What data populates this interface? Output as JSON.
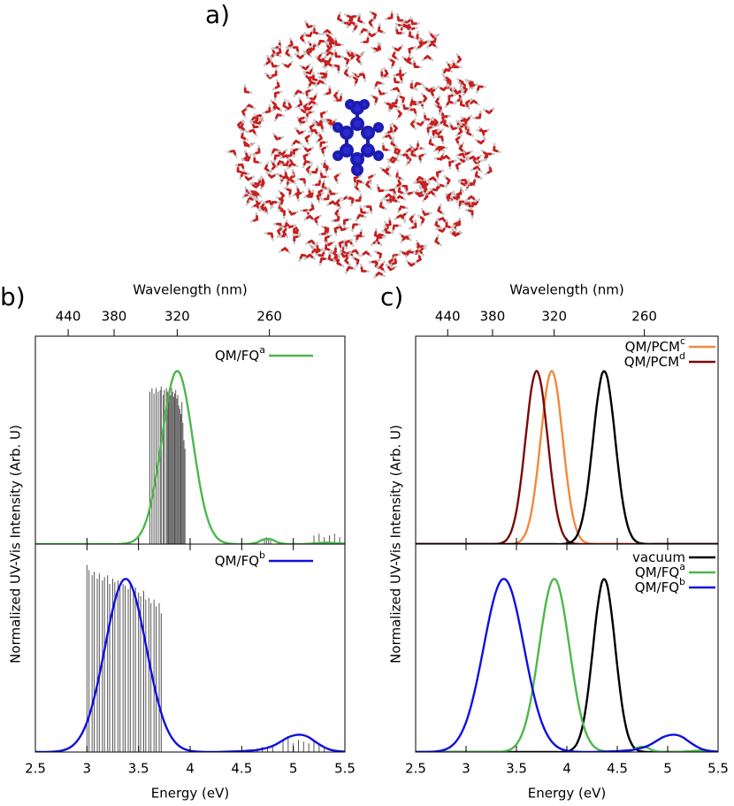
{
  "image": {
    "label": "a)"
  },
  "chart_data": [
    {
      "type": "line",
      "panel_label": "b)",
      "x2label": "Wavelength (nm)",
      "x2ticks": [
        440,
        380,
        320,
        260
      ],
      "ylabel": "Normalized UV-Vis Intensity (Arb. U)",
      "xlim": [
        2.5,
        5.5
      ],
      "ylim": [
        0,
        1.2
      ],
      "x": [
        2.5,
        2.55,
        2.6,
        2.65,
        2.7,
        2.75,
        2.8,
        2.85,
        2.9,
        2.95,
        3.0,
        3.05,
        3.1,
        3.15,
        3.2,
        3.25,
        3.3,
        3.35,
        3.4,
        3.45,
        3.5,
        3.55,
        3.6,
        3.65,
        3.7,
        3.75,
        3.8,
        3.85,
        3.9,
        3.95,
        4.0,
        4.05,
        4.1,
        4.15,
        4.2,
        4.25,
        4.3,
        4.35,
        4.4,
        4.45,
        4.5,
        4.55,
        4.6,
        4.65,
        4.7,
        4.75,
        4.8,
        4.85,
        4.9,
        4.95,
        5.0,
        5.05,
        5.1,
        5.15,
        5.2,
        5.25,
        5.3,
        5.35,
        5.4,
        5.45,
        5.5
      ],
      "series": [
        {
          "name": "QM/FQ",
          "name_sup": "a",
          "color": "#4cb84c",
          "values": [
            0,
            0,
            0,
            0,
            0,
            0,
            0,
            0,
            0,
            0,
            0,
            0,
            0,
            0,
            0,
            0,
            0,
            0.002,
            0.007,
            0.018,
            0.044,
            0.096,
            0.186,
            0.325,
            0.506,
            0.707,
            0.882,
            0.986,
            0.986,
            0.882,
            0.707,
            0.506,
            0.325,
            0.186,
            0.096,
            0.044,
            0.018,
            0.007,
            0.002,
            0,
            0,
            0,
            0.003,
            0.01,
            0.025,
            0.03,
            0.025,
            0.01,
            0.003,
            0,
            0,
            0,
            0,
            0.002,
            0.004,
            0.006,
            0.008,
            0.008,
            0.006,
            0.004,
            0.002
          ]
        }
      ],
      "sticks": {
        "color": "#555555",
        "x": [
          3.61,
          3.63,
          3.65,
          3.67,
          3.69,
          3.71,
          3.72,
          3.74,
          3.75,
          3.77,
          3.78,
          3.79,
          3.8,
          3.81,
          3.82,
          3.83,
          3.84,
          3.85,
          3.86,
          3.87,
          3.88,
          3.89,
          3.9,
          3.91,
          3.92,
          3.93,
          3.94,
          3.95,
          4.72,
          4.74,
          4.76,
          4.78,
          5.2,
          5.25,
          5.3,
          5.35,
          5.4,
          5.45
        ],
        "values": [
          0.88,
          0.9,
          0.87,
          0.9,
          0.88,
          0.89,
          0.91,
          0.86,
          0.89,
          0.9,
          0.88,
          0.87,
          0.89,
          0.86,
          0.9,
          0.88,
          0.85,
          0.87,
          0.89,
          0.84,
          0.86,
          0.8,
          0.78,
          0.75,
          0.82,
          0.7,
          0.6,
          0.55,
          0.03,
          0.04,
          0.03,
          0.02,
          0.05,
          0.06,
          0.04,
          0.05,
          0.06,
          0.04
        ]
      }
    },
    {
      "type": "line",
      "xlabel": "Energy (eV)",
      "xticks": [
        2.5,
        3,
        3.5,
        4,
        4.5,
        5,
        5.5
      ],
      "xlim": [
        2.5,
        5.5
      ],
      "ylim": [
        0,
        1.2
      ],
      "x": [
        2.5,
        2.55,
        2.6,
        2.65,
        2.7,
        2.75,
        2.8,
        2.85,
        2.9,
        2.95,
        3.0,
        3.05,
        3.1,
        3.15,
        3.2,
        3.25,
        3.3,
        3.35,
        3.4,
        3.45,
        3.5,
        3.55,
        3.6,
        3.65,
        3.7,
        3.75,
        3.8,
        3.85,
        3.9,
        3.95,
        4.0,
        4.05,
        4.1,
        4.15,
        4.2,
        4.25,
        4.3,
        4.35,
        4.4,
        4.45,
        4.5,
        4.55,
        4.6,
        4.65,
        4.7,
        4.75,
        4.8,
        4.85,
        4.9,
        4.95,
        5.0,
        5.05,
        5.1,
        5.15,
        5.2,
        5.25,
        5.3,
        5.35,
        5.4,
        5.45,
        5.5
      ],
      "series": [
        {
          "name": "QM/FQ",
          "name_sup": "b",
          "color": "#1010e0",
          "values": [
            0.0001,
            0.0002,
            0.0005,
            0.0014,
            0.0034,
            0.0076,
            0.016,
            0.032,
            0.06,
            0.105,
            0.172,
            0.267,
            0.389,
            0.531,
            0.682,
            0.823,
            0.932,
            0.992,
            0.992,
            0.932,
            0.823,
            0.682,
            0.531,
            0.389,
            0.267,
            0.172,
            0.105,
            0.06,
            0.032,
            0.016,
            0.0076,
            0.0034,
            0.0014,
            0.0005,
            0.0002,
            0.0001,
            0.001,
            0.002,
            0.003,
            0.004,
            0.005,
            0.007,
            0.009,
            0.012,
            0.018,
            0.025,
            0.035,
            0.05,
            0.068,
            0.085,
            0.095,
            0.1,
            0.097,
            0.085,
            0.065,
            0.045,
            0.028,
            0.015,
            0.008,
            0.004,
            0.002
          ]
        }
      ],
      "sticks": {
        "color": "#555555",
        "x": [
          3.0,
          3.02,
          3.05,
          3.07,
          3.1,
          3.12,
          3.15,
          3.17,
          3.2,
          3.22,
          3.25,
          3.27,
          3.3,
          3.32,
          3.35,
          3.37,
          3.4,
          3.42,
          3.45,
          3.47,
          3.5,
          3.52,
          3.55,
          3.57,
          3.6,
          3.62,
          3.65,
          3.67,
          3.7,
          3.72,
          4.65,
          4.7,
          4.75,
          4.8,
          4.9,
          4.95,
          5.0,
          5.05,
          5.1,
          5.15,
          5.2,
          5.25,
          5.3
        ],
        "values": [
          1.08,
          1.05,
          1.02,
          1.04,
          1.0,
          1.03,
          0.99,
          1.01,
          1.02,
          0.97,
          1.0,
          0.98,
          0.99,
          0.95,
          0.97,
          0.96,
          0.94,
          0.97,
          0.93,
          0.95,
          0.92,
          0.9,
          0.93,
          0.88,
          0.89,
          0.86,
          0.88,
          0.84,
          0.86,
          0.8,
          0.02,
          0.03,
          0.02,
          0.04,
          0.06,
          0.08,
          0.05,
          0.07,
          0.06,
          0.05,
          0.07,
          0.04,
          0.03
        ]
      }
    },
    {
      "type": "line",
      "panel_label": "c)",
      "x2label": "Wavelength (nm)",
      "x2ticks": [
        440,
        380,
        320,
        260
      ],
      "ylabel": "Normalized UV-Vis Intensity (Arb. U)",
      "xlim": [
        2.5,
        5.5
      ],
      "ylim": [
        0,
        1.2
      ],
      "x": [
        2.5,
        2.55,
        2.6,
        2.65,
        2.7,
        2.75,
        2.8,
        2.85,
        2.9,
        2.95,
        3.0,
        3.05,
        3.1,
        3.15,
        3.2,
        3.25,
        3.3,
        3.35,
        3.4,
        3.45,
        3.5,
        3.55,
        3.6,
        3.65,
        3.7,
        3.75,
        3.8,
        3.85,
        3.9,
        3.95,
        4.0,
        4.05,
        4.1,
        4.15,
        4.2,
        4.25,
        4.3,
        4.35,
        4.4,
        4.45,
        4.5,
        4.55,
        4.6,
        4.65,
        4.7,
        4.75,
        4.8,
        4.85,
        4.9,
        4.95,
        5.0,
        5.05,
        5.1,
        5.15,
        5.2,
        5.25,
        5.3,
        5.35,
        5.4,
        5.45,
        5.5
      ],
      "series": [
        {
          "name": "QM/PCM",
          "name_sup": "c",
          "color": "#f08a3c",
          "values": [
            0,
            0,
            0,
            0,
            0,
            0,
            0,
            0,
            0,
            0,
            0,
            0,
            0,
            0,
            0,
            0,
            0,
            0,
            0,
            0.0013,
            0.0063,
            0.024,
            0.076,
            0.191,
            0.395,
            0.661,
            0.902,
            1,
            0.902,
            0.661,
            0.395,
            0.191,
            0.076,
            0.024,
            0.0063,
            0.0013,
            0,
            0,
            0,
            0,
            0,
            0,
            0,
            0,
            0,
            0,
            0,
            0,
            0,
            0,
            0,
            0,
            0,
            0,
            0,
            0,
            0,
            0,
            0,
            0,
            0
          ]
        },
        {
          "name": "QM/PCM",
          "name_sup": "d",
          "color": "#7a0a0a",
          "values": [
            0,
            0,
            0,
            0,
            0,
            0,
            0,
            0,
            0,
            0,
            0,
            0,
            0,
            0,
            0,
            0,
            0.0013,
            0.0063,
            0.024,
            0.076,
            0.191,
            0.395,
            0.661,
            0.902,
            1,
            0.902,
            0.661,
            0.395,
            0.191,
            0.076,
            0.024,
            0.0063,
            0.0013,
            0,
            0,
            0,
            0,
            0,
            0,
            0,
            0,
            0,
            0,
            0,
            0,
            0,
            0,
            0,
            0,
            0,
            0,
            0,
            0,
            0,
            0,
            0,
            0,
            0,
            0,
            0,
            0
          ]
        },
        {
          "color": "#000000",
          "values": [
            0,
            0,
            0,
            0,
            0,
            0,
            0,
            0,
            0,
            0,
            0,
            0,
            0,
            0,
            0,
            0,
            0,
            0,
            0,
            0,
            0,
            0,
            0,
            0,
            0,
            0,
            0,
            0,
            0,
            0,
            0.0035,
            0.0145,
            0.049,
            0.135,
            0.303,
            0.552,
            0.817,
            0.984,
            0.964,
            0.768,
            0.498,
            0.262,
            0.112,
            0.039,
            0.011,
            0.003,
            0,
            0,
            0,
            0,
            0,
            0,
            0,
            0,
            0,
            0,
            0,
            0,
            0,
            0,
            0
          ]
        }
      ]
    },
    {
      "type": "line",
      "xlabel": "Energy (eV)",
      "xticks": [
        2.5,
        3,
        3.5,
        4,
        4.5,
        5,
        5.5
      ],
      "xlim": [
        2.5,
        5.5
      ],
      "ylim": [
        0,
        1.2
      ],
      "x": [
        2.5,
        2.55,
        2.6,
        2.65,
        2.7,
        2.75,
        2.8,
        2.85,
        2.9,
        2.95,
        3.0,
        3.05,
        3.1,
        3.15,
        3.2,
        3.25,
        3.3,
        3.35,
        3.4,
        3.45,
        3.5,
        3.55,
        3.6,
        3.65,
        3.7,
        3.75,
        3.8,
        3.85,
        3.9,
        3.95,
        4.0,
        4.05,
        4.1,
        4.15,
        4.2,
        4.25,
        4.3,
        4.35,
        4.4,
        4.45,
        4.5,
        4.55,
        4.6,
        4.65,
        4.7,
        4.75,
        4.8,
        4.85,
        4.9,
        4.95,
        5.0,
        5.05,
        5.1,
        5.15,
        5.2,
        5.25,
        5.3,
        5.35,
        5.4,
        5.45,
        5.5
      ],
      "series": [
        {
          "name": "vacuum",
          "color": "#000000",
          "values": [
            0,
            0,
            0,
            0,
            0,
            0,
            0,
            0,
            0,
            0,
            0,
            0,
            0,
            0,
            0,
            0,
            0,
            0,
            0,
            0,
            0,
            0,
            0,
            0,
            0,
            0,
            0,
            0,
            0,
            0,
            0.0035,
            0.0145,
            0.049,
            0.135,
            0.303,
            0.552,
            0.817,
            0.984,
            0.964,
            0.768,
            0.498,
            0.262,
            0.112,
            0.039,
            0.011,
            0.003,
            0,
            0,
            0,
            0,
            0,
            0,
            0,
            0,
            0,
            0,
            0,
            0,
            0,
            0,
            0
          ]
        },
        {
          "name": "QM/FQ",
          "name_sup": "a",
          "color": "#4cb84c",
          "values": [
            0,
            0,
            0,
            0,
            0,
            0,
            0,
            0,
            0,
            0,
            0,
            0,
            0,
            0,
            0,
            0,
            0,
            0.002,
            0.007,
            0.018,
            0.044,
            0.096,
            0.186,
            0.325,
            0.506,
            0.707,
            0.882,
            0.986,
            0.986,
            0.882,
            0.707,
            0.506,
            0.325,
            0.186,
            0.096,
            0.044,
            0.018,
            0.007,
            0.002,
            0,
            0,
            0,
            0.003,
            0.01,
            0.025,
            0.03,
            0.025,
            0.01,
            0.003,
            0,
            0,
            0,
            0,
            0.002,
            0.004,
            0.006,
            0.008,
            0.008,
            0.006,
            0.004,
            0.002
          ]
        },
        {
          "name": "QM/FQ",
          "name_sup": "b",
          "color": "#1010e0",
          "values": [
            0.0001,
            0.0002,
            0.0005,
            0.0014,
            0.0034,
            0.0076,
            0.016,
            0.032,
            0.06,
            0.105,
            0.172,
            0.267,
            0.389,
            0.531,
            0.682,
            0.823,
            0.932,
            0.992,
            0.992,
            0.932,
            0.823,
            0.682,
            0.531,
            0.389,
            0.267,
            0.172,
            0.105,
            0.06,
            0.032,
            0.016,
            0.0076,
            0.0034,
            0.0014,
            0.0005,
            0.0002,
            0.0001,
            0.001,
            0.002,
            0.003,
            0.004,
            0.005,
            0.007,
            0.009,
            0.012,
            0.018,
            0.025,
            0.035,
            0.05,
            0.068,
            0.085,
            0.095,
            0.1,
            0.097,
            0.085,
            0.065,
            0.045,
            0.028,
            0.015,
            0.008,
            0.004,
            0.002
          ]
        }
      ]
    }
  ]
}
